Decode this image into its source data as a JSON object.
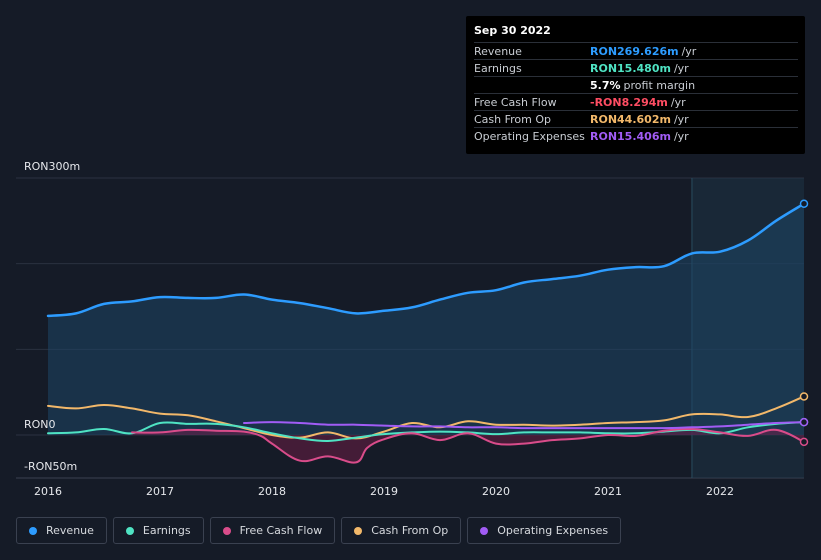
{
  "tooltip": {
    "date": "Sep 30 2022",
    "rows": [
      {
        "name": "Revenue",
        "value": "RON269.626m",
        "unit": "/yr",
        "color": "#2d9cff"
      },
      {
        "name": "Earnings",
        "value": "RON15.480m",
        "unit": "/yr",
        "color": "#4fe3c3"
      },
      {
        "name": "",
        "value": "5.7%",
        "unit": "profit margin",
        "color": "#ffffff"
      },
      {
        "name": "Free Cash Flow",
        "value": "-RON8.294m",
        "unit": "/yr",
        "color": "#ff4d63"
      },
      {
        "name": "Cash From Op",
        "value": "RON44.602m",
        "unit": "/yr",
        "color": "#f2b86a"
      },
      {
        "name": "Operating Expenses",
        "value": "RON15.406m",
        "unit": "/yr",
        "color": "#a15cf5"
      }
    ]
  },
  "legend": [
    {
      "label": "Revenue",
      "color": "#2d9cff"
    },
    {
      "label": "Earnings",
      "color": "#4fe3c3"
    },
    {
      "label": "Free Cash Flow",
      "color": "#d94c8a"
    },
    {
      "label": "Cash From Op",
      "color": "#f2b86a"
    },
    {
      "label": "Operating Expenses",
      "color": "#a15cf5"
    }
  ],
  "chart_data": {
    "type": "line",
    "title": "",
    "y_axis_labels": [
      "RON300m",
      "RON0",
      "-RON50m"
    ],
    "ylim": [
      -50,
      300
    ],
    "xlim": [
      2016.0,
      2022.75
    ],
    "x_ticks": [
      2016,
      2017,
      2018,
      2019,
      2020,
      2021,
      2022
    ],
    "x_tick_labels": [
      "2016",
      "2017",
      "2018",
      "2019",
      "2020",
      "2021",
      "2022"
    ],
    "forecast_start": 2021.75,
    "series": [
      {
        "name": "Revenue",
        "color": "#2d9cff",
        "x": [
          2016.0,
          2016.25,
          2016.5,
          2016.75,
          2017.0,
          2017.25,
          2017.5,
          2017.75,
          2018.0,
          2018.25,
          2018.5,
          2018.75,
          2019.0,
          2019.25,
          2019.5,
          2019.75,
          2020.0,
          2020.25,
          2020.5,
          2020.75,
          2021.0,
          2021.25,
          2021.5,
          2021.75,
          2022.0,
          2022.25,
          2022.5,
          2022.75
        ],
        "values": [
          139,
          142,
          153,
          156,
          161,
          160,
          160,
          164,
          158,
          154,
          148,
          142,
          145,
          149,
          158,
          166,
          169,
          178,
          182,
          186,
          193,
          196,
          197,
          212,
          214,
          227,
          250,
          270
        ]
      },
      {
        "name": "Earnings",
        "color": "#4fe3c3",
        "x": [
          2016.0,
          2016.25,
          2016.5,
          2016.75,
          2017.0,
          2017.25,
          2017.5,
          2017.75,
          2018.0,
          2018.25,
          2018.5,
          2018.75,
          2019.0,
          2019.25,
          2019.5,
          2019.75,
          2020.0,
          2020.25,
          2020.5,
          2020.75,
          2021.0,
          2021.25,
          2021.5,
          2021.75,
          2022.0,
          2022.25,
          2022.5,
          2022.75
        ],
        "values": [
          2,
          3,
          7,
          2,
          14,
          13,
          13,
          9,
          2,
          -4,
          -7,
          -3,
          1,
          3,
          4,
          3,
          1,
          3,
          3,
          3,
          2,
          2,
          4,
          6,
          2,
          9,
          13,
          15
        ]
      },
      {
        "name": "Free Cash Flow",
        "color": "#d94c8a",
        "x": [
          2016.75,
          2017.0,
          2017.25,
          2017.5,
          2017.75,
          2017.9,
          2018.0,
          2018.25,
          2018.5,
          2018.75,
          2018.85,
          2019.0,
          2019.25,
          2019.5,
          2019.75,
          2020.0,
          2020.25,
          2020.5,
          2020.75,
          2021.0,
          2021.25,
          2021.5,
          2021.75,
          2022.0,
          2022.25,
          2022.5,
          2022.75
        ],
        "values": [
          3,
          3,
          6,
          5,
          4,
          -1,
          -10,
          -30,
          -25,
          -32,
          -15,
          -5,
          2,
          -6,
          2,
          -10,
          -10,
          -6,
          -4,
          0,
          -1,
          5,
          7,
          3,
          -1,
          6,
          -8
        ]
      },
      {
        "name": "Cash From Op",
        "color": "#f2b86a",
        "x": [
          2016.0,
          2016.25,
          2016.5,
          2016.75,
          2017.0,
          2017.25,
          2017.5,
          2017.75,
          2018.0,
          2018.25,
          2018.5,
          2018.75,
          2019.0,
          2019.25,
          2019.5,
          2019.75,
          2020.0,
          2020.25,
          2020.5,
          2020.75,
          2021.0,
          2021.25,
          2021.5,
          2021.75,
          2022.0,
          2022.25,
          2022.5,
          2022.75
        ],
        "values": [
          34,
          31,
          35,
          31,
          25,
          23,
          16,
          8,
          0,
          -3,
          3,
          -4,
          4,
          14,
          9,
          16,
          12,
          12,
          11,
          12,
          14,
          15,
          17,
          24,
          24,
          21,
          31,
          45
        ]
      },
      {
        "name": "Operating Expenses",
        "color": "#a15cf5",
        "x": [
          2017.75,
          2018.0,
          2018.25,
          2018.5,
          2018.75,
          2019.0,
          2019.25,
          2019.5,
          2019.75,
          2020.0,
          2020.25,
          2020.5,
          2020.75,
          2021.0,
          2021.25,
          2021.5,
          2021.75,
          2022.0,
          2022.25,
          2022.5,
          2022.75
        ],
        "values": [
          14,
          15,
          14,
          12,
          12,
          11,
          10,
          10,
          9,
          9,
          8,
          8,
          8,
          8,
          8,
          8,
          9,
          10,
          12,
          14,
          15
        ]
      }
    ]
  }
}
